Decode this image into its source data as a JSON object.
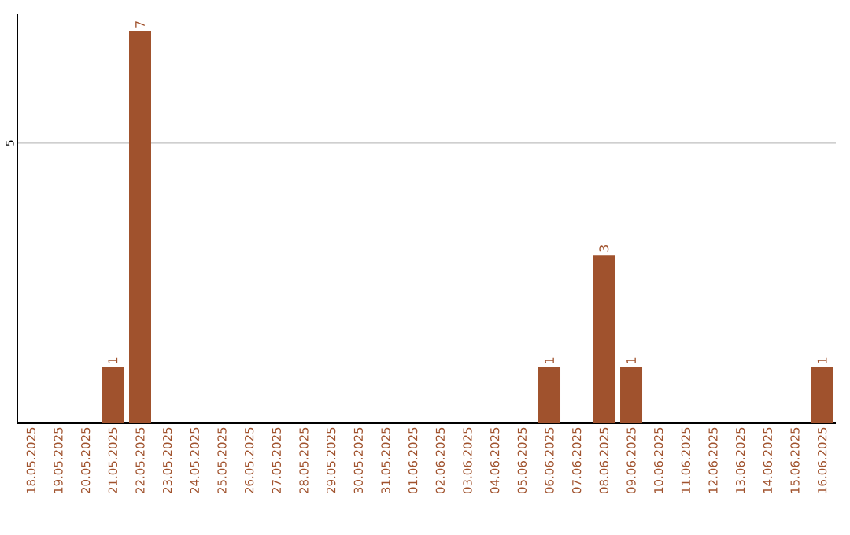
{
  "chart_data": {
    "type": "bar",
    "categories": [
      "18.05.2025",
      "19.05.2025",
      "20.05.2025",
      "21.05.2025",
      "22.05.2025",
      "23.05.2025",
      "24.05.2025",
      "25.05.2025",
      "26.05.2025",
      "27.05.2025",
      "28.05.2025",
      "29.05.2025",
      "30.05.2025",
      "31.05.2025",
      "01.06.2025",
      "02.06.2025",
      "03.06.2025",
      "04.06.2025",
      "05.06.2025",
      "06.06.2025",
      "07.06.2025",
      "08.06.2025",
      "09.06.2025",
      "10.06.2025",
      "11.06.2025",
      "12.06.2025",
      "13.06.2025",
      "14.06.2025",
      "15.06.2025",
      "16.06.2025"
    ],
    "values": [
      0,
      0,
      0,
      1,
      7,
      0,
      0,
      0,
      0,
      0,
      0,
      0,
      0,
      0,
      0,
      0,
      0,
      0,
      0,
      1,
      0,
      3,
      1,
      0,
      0,
      0,
      0,
      0,
      0,
      1
    ],
    "value_labels": [
      null,
      null,
      null,
      "1",
      "7",
      null,
      null,
      null,
      null,
      null,
      null,
      null,
      null,
      null,
      null,
      null,
      null,
      null,
      null,
      "1",
      null,
      "3",
      "1",
      null,
      null,
      null,
      null,
      null,
      null,
      "1"
    ],
    "color": "#a0522d",
    "ylim": [
      0,
      7.3
    ],
    "yticks": [
      5
    ],
    "grid": "y"
  }
}
